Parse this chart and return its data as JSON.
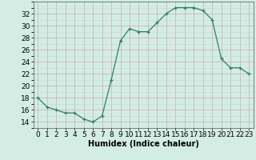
{
  "x": [
    0,
    1,
    2,
    3,
    4,
    5,
    6,
    7,
    8,
    9,
    10,
    11,
    12,
    13,
    14,
    15,
    16,
    17,
    18,
    19,
    20,
    21,
    22,
    23
  ],
  "y": [
    18,
    16.5,
    16,
    15.5,
    15.5,
    14.5,
    14,
    15,
    21,
    27.5,
    29.5,
    29,
    29,
    30.5,
    32,
    33,
    33,
    33,
    32.5,
    31,
    24.5,
    23,
    23,
    22
  ],
  "line_color": "#2e7d6e",
  "marker": "+",
  "bg_color": "#d4ede4",
  "grid_major_color": "#c8b8b8",
  "grid_minor_color": "#b8d8cc",
  "xlabel": "Humidex (Indice chaleur)",
  "ylim": [
    13,
    34
  ],
  "xlim": [
    -0.5,
    23.5
  ],
  "yticks": [
    14,
    16,
    18,
    20,
    22,
    24,
    26,
    28,
    30,
    32
  ],
  "xticks": [
    0,
    1,
    2,
    3,
    4,
    5,
    6,
    7,
    8,
    9,
    10,
    11,
    12,
    13,
    14,
    15,
    16,
    17,
    18,
    19,
    20,
    21,
    22,
    23
  ],
  "label_fontsize": 7,
  "tick_fontsize": 6.5
}
